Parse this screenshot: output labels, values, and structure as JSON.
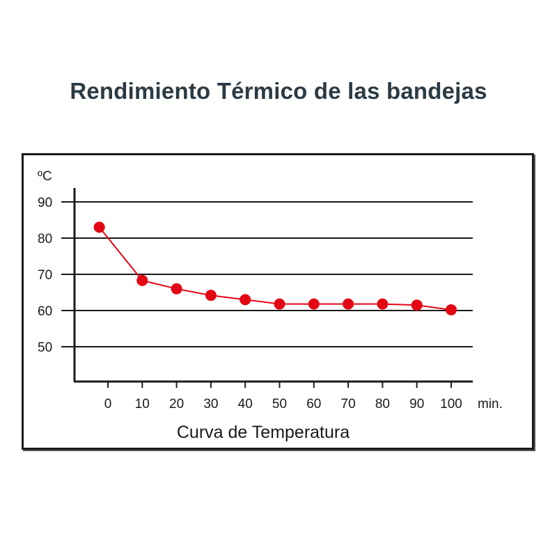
{
  "page": {
    "title": "Rendimiento Térmico de las bandejas"
  },
  "chart_data": {
    "type": "line",
    "title": "Rendimiento Térmico de las bandejas",
    "caption": "Curva de Temperatura",
    "ylabel": "ºC",
    "xlabel": "min.",
    "x_ticks": [
      "0",
      "10",
      "20",
      "30",
      "40",
      "50",
      "60",
      "70",
      "80",
      "90",
      "100"
    ],
    "y_ticks": [
      "50",
      "60",
      "70",
      "80",
      "90"
    ],
    "ylim": [
      40,
      94
    ],
    "grid": true,
    "series": [
      {
        "color": "#e30613",
        "points": [
          {
            "x": -2.5,
            "y": 83
          },
          {
            "x": 10,
            "y": 68.3
          },
          {
            "x": 20,
            "y": 66
          },
          {
            "x": 30,
            "y": 64.2
          },
          {
            "x": 40,
            "y": 63
          },
          {
            "x": 50,
            "y": 61.8
          },
          {
            "x": 60,
            "y": 61.8
          },
          {
            "x": 70,
            "y": 61.8
          },
          {
            "x": 80,
            "y": 61.8
          },
          {
            "x": 90,
            "y": 61.5
          },
          {
            "x": 100,
            "y": 60.2
          }
        ]
      }
    ]
  }
}
